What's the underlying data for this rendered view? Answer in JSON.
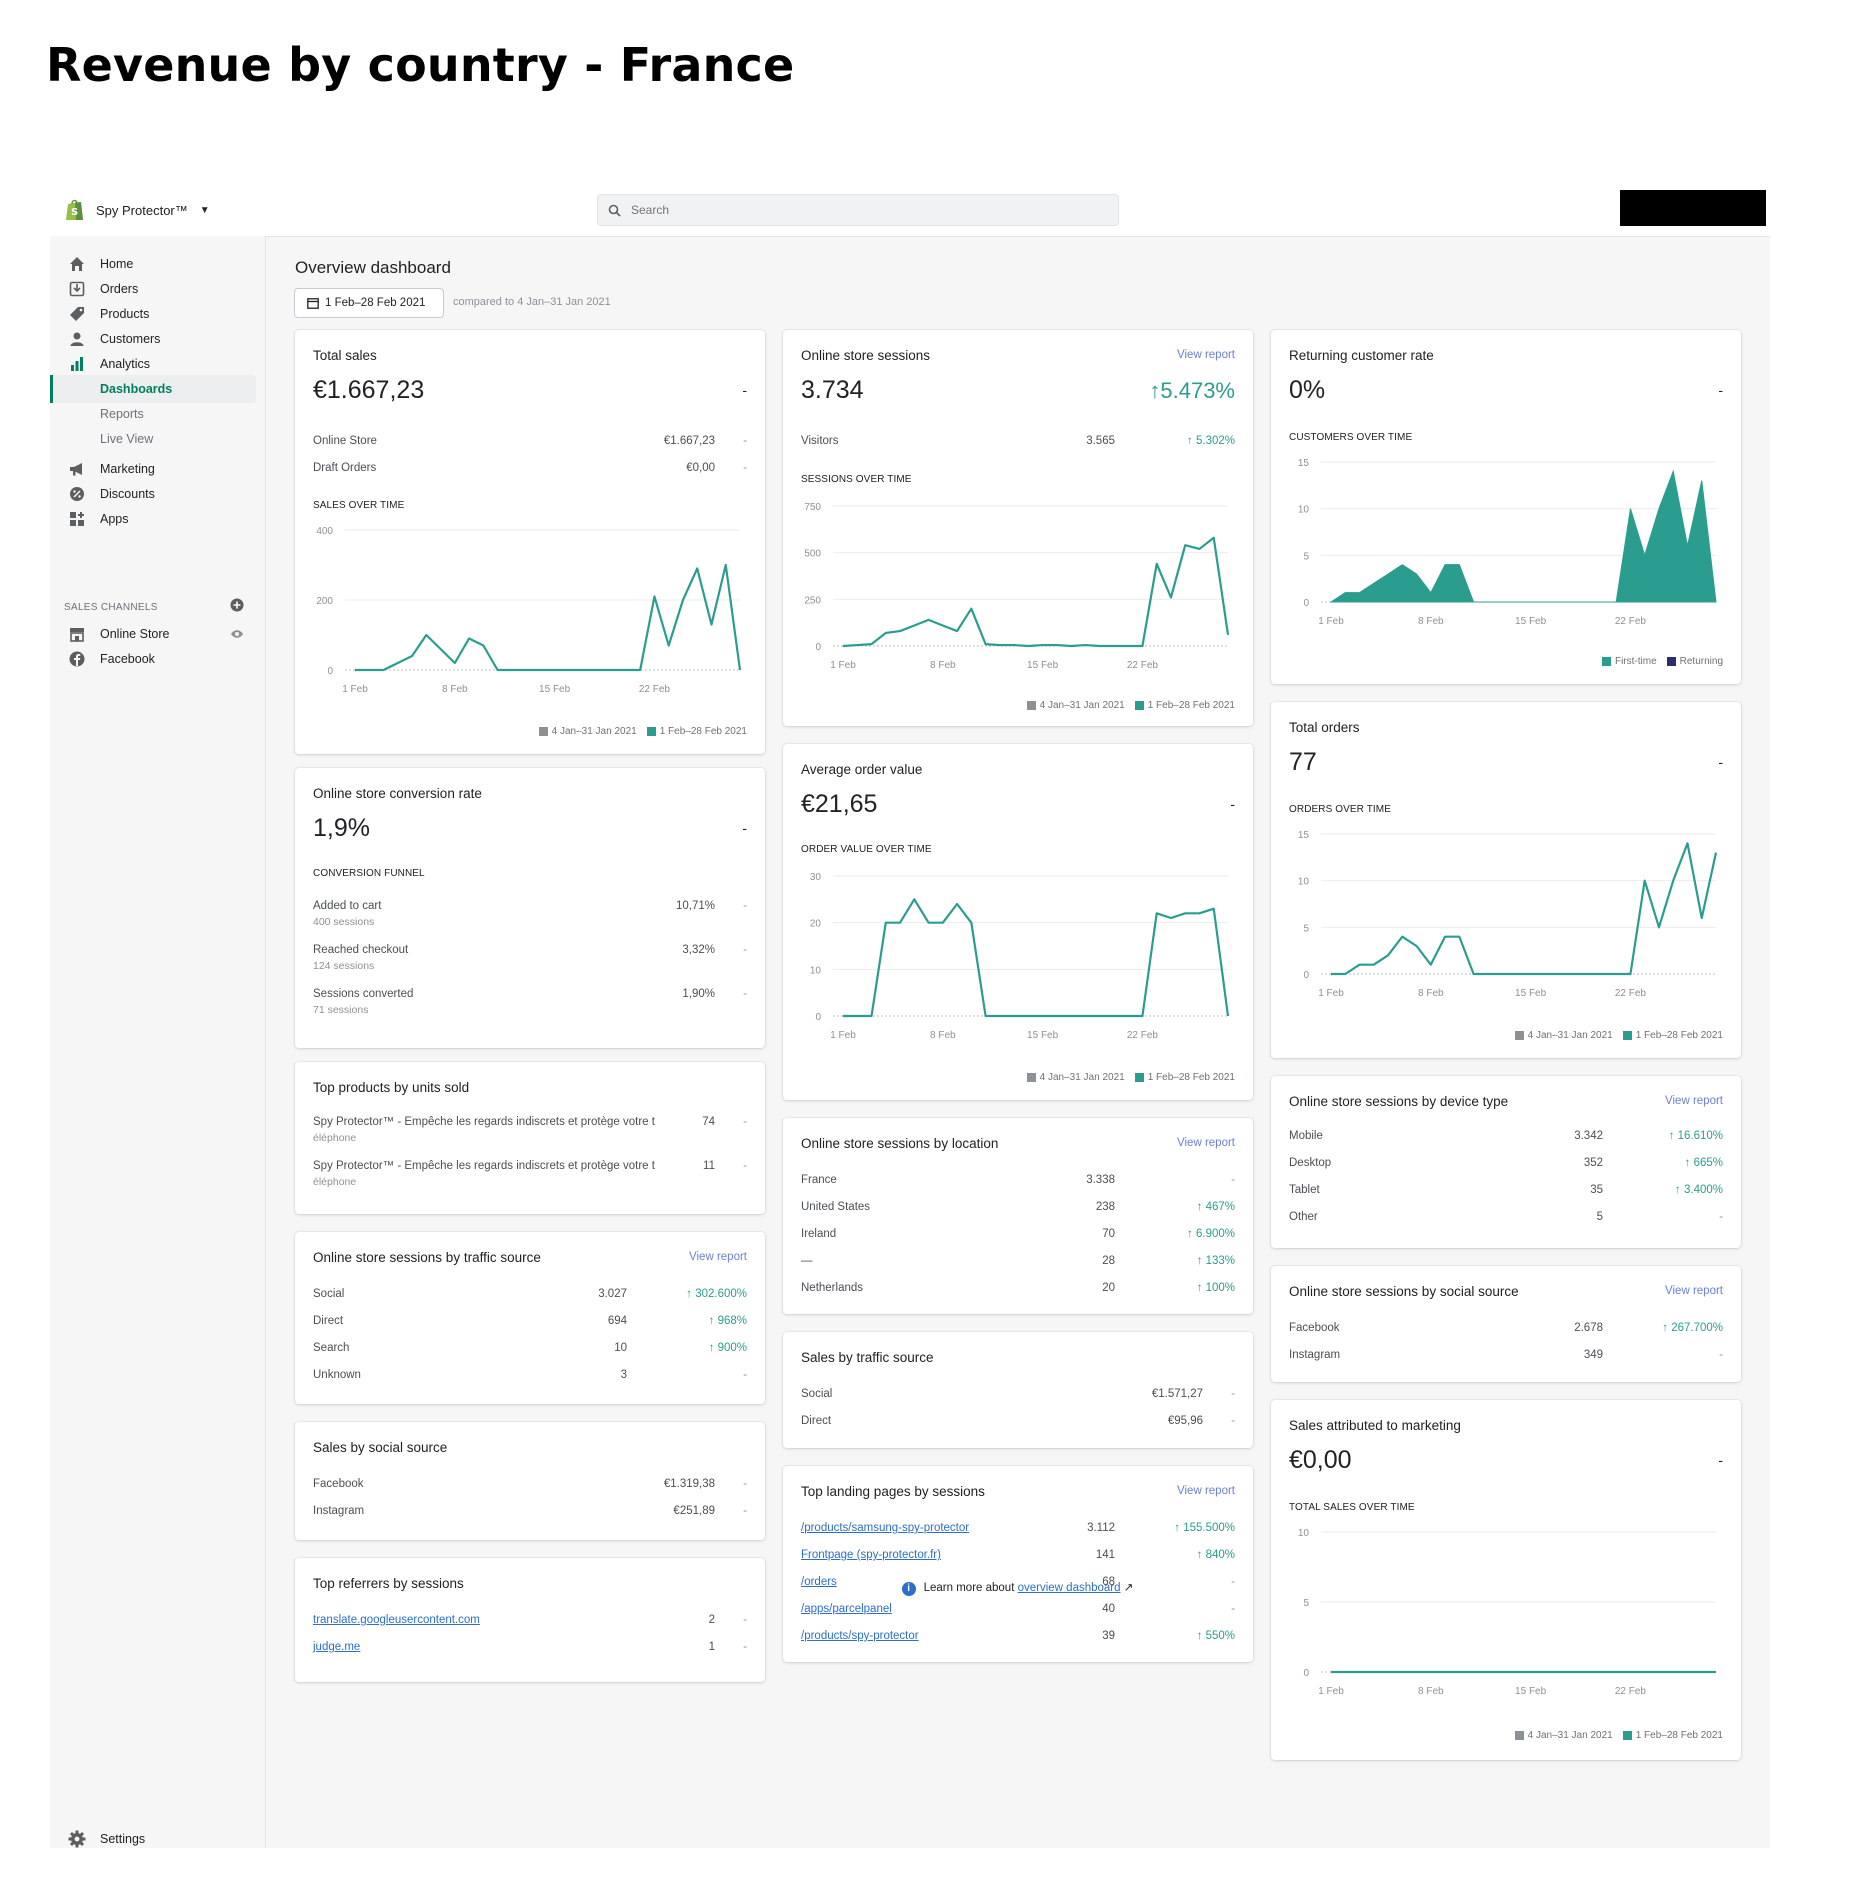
{
  "heading": "Revenue by country - France",
  "topbar": {
    "store_name": "Spy Protector™",
    "search_placeholder": "Search"
  },
  "sidebar": {
    "items": [
      {
        "label": "Home",
        "icon": "home-icon"
      },
      {
        "label": "Orders",
        "icon": "orders-icon"
      },
      {
        "label": "Products",
        "icon": "tag-icon"
      },
      {
        "label": "Customers",
        "icon": "person-icon"
      },
      {
        "label": "Analytics",
        "icon": "bar-chart-icon"
      }
    ],
    "sub_items": [
      "Dashboards",
      "Reports",
      "Live View"
    ],
    "items2": [
      {
        "label": "Marketing",
        "icon": "megaphone-icon"
      },
      {
        "label": "Discounts",
        "icon": "discount-icon"
      },
      {
        "label": "Apps",
        "icon": "apps-icon"
      }
    ],
    "sales_channels_heading": "SALES CHANNELS",
    "channels": [
      "Online Store",
      "Facebook"
    ],
    "settings": "Settings"
  },
  "main": {
    "title": "Overview dashboard",
    "date_range": "1 Feb–28 Feb 2021",
    "compared": "compared to 4 Jan–31 Jan 2021",
    "legend_prev": "4 Jan–31 Jan 2021",
    "legend_cur": "1 Feb–28 Feb 2021",
    "view_report": "View report",
    "learn_prefix": "Learn more about",
    "learn_link": "overview dashboard"
  },
  "total_sales": {
    "title": "Total sales",
    "value": "€1.667,23",
    "delta": "-",
    "rows": [
      {
        "label": "Online Store",
        "value": "€1.667,23",
        "delta": "-"
      },
      {
        "label": "Draft Orders",
        "value": "€0,00",
        "delta": "-"
      }
    ],
    "chart_title": "SALES OVER TIME"
  },
  "conversion": {
    "title": "Online store conversion rate",
    "value": "1,9%",
    "delta": "-",
    "funnel_title": "CONVERSION FUNNEL",
    "rows": [
      {
        "label": "Added to cart",
        "sub": "400 sessions",
        "value": "10,71%",
        "delta": "-"
      },
      {
        "label": "Reached checkout",
        "sub": "124 sessions",
        "value": "3,32%",
        "delta": "-"
      },
      {
        "label": "Sessions converted",
        "sub": "71 sessions",
        "value": "1,90%",
        "delta": "-"
      }
    ]
  },
  "top_products": {
    "title": "Top products by units sold",
    "rows": [
      {
        "label1": "Spy Protector™ - Empêche les regards indiscrets et protège votre t",
        "label2": "éléphone",
        "value": "74",
        "delta": "-"
      },
      {
        "label1": "Spy Protector™ - Empêche les regards indiscrets et protège votre t",
        "label2": "éléphone",
        "value": "11",
        "delta": "-"
      }
    ]
  },
  "traffic_source": {
    "title": "Online store sessions by traffic source",
    "rows": [
      {
        "label": "Social",
        "value": "3.027",
        "delta": "↑ 302.600%"
      },
      {
        "label": "Direct",
        "value": "694",
        "delta": "↑ 968%"
      },
      {
        "label": "Search",
        "value": "10",
        "delta": "↑ 900%"
      },
      {
        "label": "Unknown",
        "value": "3",
        "delta": "-"
      }
    ]
  },
  "social_sales": {
    "title": "Sales by social source",
    "rows": [
      {
        "label": "Facebook",
        "value": "€1.319,38",
        "delta": "-"
      },
      {
        "label": "Instagram",
        "value": "€251,89",
        "delta": "-"
      }
    ]
  },
  "referrers": {
    "title": "Top referrers by sessions",
    "rows": [
      {
        "label": "translate.googleusercontent.com",
        "value": "2",
        "delta": "-"
      },
      {
        "label": "judge.me",
        "value": "1",
        "delta": "-"
      }
    ]
  },
  "sessions": {
    "title": "Online store sessions",
    "value": "3.734",
    "delta": "↑5.473%",
    "rows": [
      {
        "label": "Visitors",
        "value": "3.565",
        "delta": "↑ 5.302%"
      }
    ],
    "chart_title": "SESSIONS OVER TIME"
  },
  "aov": {
    "title": "Average order value",
    "value": "€21,65",
    "delta": "-",
    "chart_title": "ORDER VALUE OVER TIME"
  },
  "location": {
    "title": "Online store sessions by location",
    "rows": [
      {
        "label": "France",
        "value": "3.338",
        "delta": "-"
      },
      {
        "label": "United States",
        "value": "238",
        "delta": "↑ 467%"
      },
      {
        "label": "Ireland",
        "value": "70",
        "delta": "↑ 6.900%"
      },
      {
        "label": "—",
        "value": "28",
        "delta": "↑ 133%"
      },
      {
        "label": "Netherlands",
        "value": "20",
        "delta": "↑ 100%"
      }
    ]
  },
  "sales_traffic": {
    "title": "Sales by traffic source",
    "rows": [
      {
        "label": "Social",
        "value": "€1.571,27",
        "delta": "-"
      },
      {
        "label": "Direct",
        "value": "€95,96",
        "delta": "-"
      }
    ]
  },
  "landing": {
    "title": "Top landing pages by sessions",
    "rows": [
      {
        "label": "/products/samsung-spy-protector",
        "value": "3.112",
        "delta": "↑ 155.500%"
      },
      {
        "label": "Frontpage (spy-protector.fr)",
        "value": "141",
        "delta": "↑ 840%"
      },
      {
        "label": "/orders",
        "value": "68",
        "delta": "-"
      },
      {
        "label": "/apps/parcelpanel",
        "value": "40",
        "delta": "-"
      },
      {
        "label": "/products/spy-protector",
        "value": "39",
        "delta": "↑ 550%"
      }
    ]
  },
  "returning": {
    "title": "Returning customer rate",
    "value": "0%",
    "delta": "-",
    "chart_title": "CUSTOMERS OVER TIME",
    "legend_first": "First-time",
    "legend_returning": "Returning"
  },
  "orders": {
    "title": "Total orders",
    "value": "77",
    "delta": "-",
    "chart_title": "ORDERS OVER TIME"
  },
  "device": {
    "title": "Online store sessions by device type",
    "rows": [
      {
        "label": "Mobile",
        "value": "3.342",
        "delta": "↑ 16.610%"
      },
      {
        "label": "Desktop",
        "value": "352",
        "delta": "↑ 665%"
      },
      {
        "label": "Tablet",
        "value": "35",
        "delta": "↑ 3.400%"
      },
      {
        "label": "Other",
        "value": "5",
        "delta": "-"
      }
    ]
  },
  "social_sessions": {
    "title": "Online store sessions by social source",
    "rows": [
      {
        "label": "Facebook",
        "value": "2.678",
        "delta": "↑ 267.700%"
      },
      {
        "label": "Instagram",
        "value": "349",
        "delta": "-"
      }
    ]
  },
  "marketing": {
    "title": "Sales attributed to marketing",
    "value": "€0,00",
    "delta": "-",
    "chart_title": "TOTAL SALES OVER TIME"
  },
  "colors": {
    "teal": "#2a9d8f",
    "prev": "#8c9196",
    "navy": "#2b2d6e",
    "link": "#2c6ecb",
    "green": "#008060"
  },
  "chart_data": [
    {
      "id": "sales",
      "type": "line",
      "x_ticks": [
        "1 Feb",
        "8 Feb",
        "15 Feb",
        "22 Feb"
      ],
      "ylim": [
        0,
        400
      ],
      "y_ticks": [
        "0",
        "200",
        "400"
      ],
      "series": [
        {
          "name": "1 Feb–28 Feb 2021",
          "values": [
            0,
            0,
            0,
            20,
            40,
            100,
            60,
            20,
            90,
            70,
            0,
            0,
            0,
            0,
            0,
            0,
            0,
            0,
            0,
            0,
            0,
            210,
            70,
            200,
            290,
            130,
            300,
            0
          ]
        }
      ]
    },
    {
      "id": "sessions",
      "type": "line",
      "x_ticks": [
        "1 Feb",
        "8 Feb",
        "15 Feb",
        "22 Feb"
      ],
      "ylim": [
        0,
        750
      ],
      "y_ticks": [
        "0",
        "250",
        "500",
        "750"
      ],
      "series": [
        {
          "name": "1 Feb–28 Feb 2021",
          "values": [
            0,
            5,
            10,
            70,
            80,
            110,
            140,
            110,
            80,
            200,
            10,
            5,
            5,
            0,
            5,
            5,
            0,
            5,
            0,
            0,
            0,
            0,
            440,
            260,
            540,
            520,
            580,
            60
          ]
        }
      ]
    },
    {
      "id": "aov",
      "type": "line",
      "x_ticks": [
        "1 Feb",
        "8 Feb",
        "15 Feb",
        "22 Feb"
      ],
      "ylim": [
        0,
        30
      ],
      "y_ticks": [
        "0",
        "10",
        "20",
        "30"
      ],
      "series": [
        {
          "name": "1 Feb–28 Feb 2021",
          "values": [
            0,
            0,
            0,
            20,
            20,
            25,
            20,
            20,
            24,
            20,
            0,
            0,
            0,
            0,
            0,
            0,
            0,
            0,
            0,
            0,
            0,
            0,
            22,
            21,
            22,
            22,
            23,
            0
          ]
        }
      ]
    },
    {
      "id": "customers",
      "type": "area",
      "x_ticks": [
        "1 Feb",
        "8 Feb",
        "15 Feb",
        "22 Feb"
      ],
      "ylim": [
        0,
        15
      ],
      "y_ticks": [
        "0",
        "5",
        "10",
        "15"
      ],
      "series": [
        {
          "name": "First-time",
          "values": [
            0,
            1,
            1,
            2,
            3,
            4,
            3,
            1,
            4,
            4,
            0,
            0,
            0,
            0,
            0,
            0,
            0,
            0,
            0,
            0,
            0,
            10,
            5,
            10,
            14,
            6,
            13,
            0
          ]
        }
      ]
    },
    {
      "id": "orders",
      "type": "line",
      "x_ticks": [
        "1 Feb",
        "8 Feb",
        "15 Feb",
        "22 Feb"
      ],
      "ylim": [
        0,
        15
      ],
      "y_ticks": [
        "0",
        "5",
        "10",
        "15"
      ],
      "series": [
        {
          "name": "1 Feb–28 Feb 2021",
          "values": [
            0,
            0,
            1,
            1,
            2,
            4,
            3,
            1,
            4,
            4,
            0,
            0,
            0,
            0,
            0,
            0,
            0,
            0,
            0,
            0,
            0,
            0,
            10,
            5,
            10,
            14,
            6,
            13
          ]
        }
      ]
    },
    {
      "id": "marketing",
      "type": "line",
      "x_ticks": [
        "1 Feb",
        "8 Feb",
        "15 Feb",
        "22 Feb"
      ],
      "ylim": [
        0,
        10
      ],
      "y_ticks": [
        "0",
        "5",
        "10"
      ],
      "series": [
        {
          "name": "1 Feb–28 Feb 2021",
          "values": [
            0,
            0,
            0,
            0,
            0,
            0,
            0,
            0,
            0,
            0,
            0,
            0,
            0,
            0,
            0,
            0,
            0,
            0,
            0,
            0,
            0,
            0,
            0,
            0,
            0,
            0,
            0,
            0
          ]
        }
      ]
    }
  ]
}
